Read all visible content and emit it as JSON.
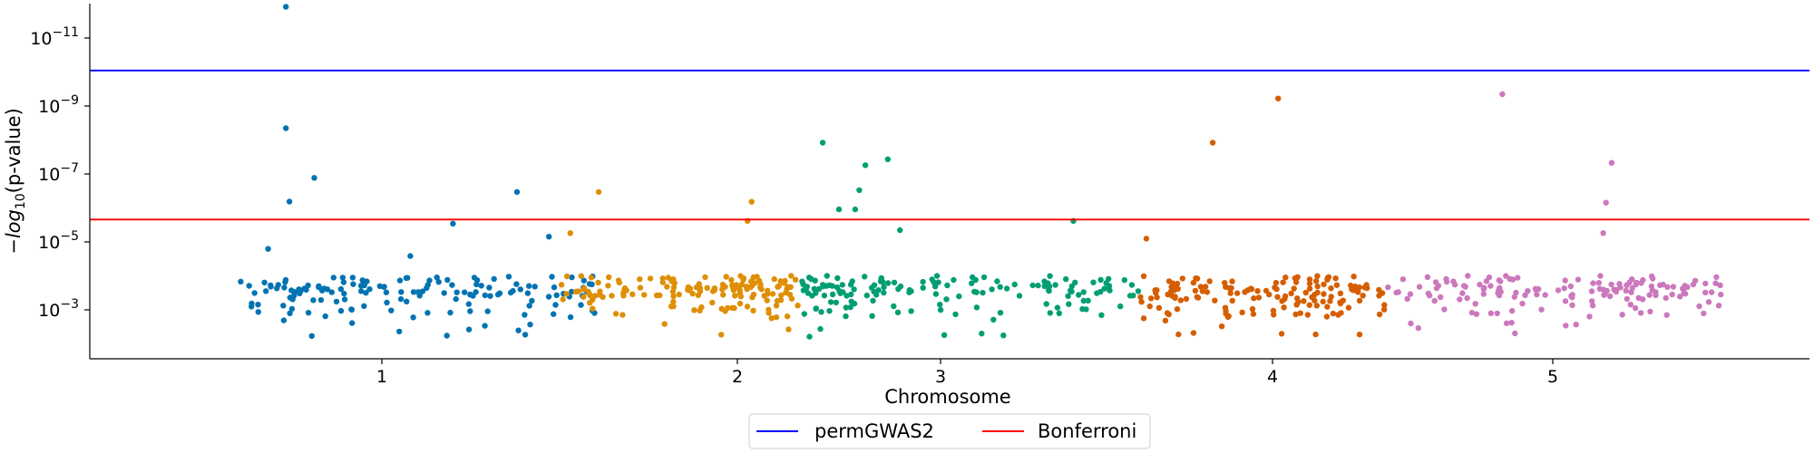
{
  "chart_data": {
    "type": "scatter",
    "title": "",
    "xlabel": "Chromosome",
    "ylabel": "−log10(p-value)",
    "y_scale": "log",
    "y_axis_inverted": true,
    "ylim": [
      4e-05,
      4e-12
    ],
    "x_ticks": [
      "1",
      "2",
      "3",
      "4",
      "5"
    ],
    "y_ticks": [
      {
        "value": 1e-11,
        "base": "10",
        "exp": "−11"
      },
      {
        "value": 1e-09,
        "base": "10",
        "exp": "−9"
      },
      {
        "value": 1e-07,
        "base": "10",
        "exp": "−7"
      },
      {
        "value": 1e-05,
        "base": "10",
        "exp": "−5"
      },
      {
        "value": 0.001,
        "base": "10",
        "exp": "−3"
      }
    ],
    "thresholds": [
      {
        "name": "permGWAS2",
        "value": 9e-11,
        "color": "#0000ff"
      },
      {
        "name": "Bonferroni",
        "value": 2.2e-06,
        "color": "#ff0000"
      }
    ],
    "legend": {
      "position": "bottom-center",
      "entries": [
        "permGWAS2",
        "Bonferroni"
      ]
    },
    "grid": false,
    "chromosomes": [
      {
        "chr": "1",
        "color": "#0173b2",
        "range": [
          0.6,
          1.6
        ],
        "tick": 1.0,
        "top_hits": [
          {
            "x": 0.73,
            "p": 1.2e-12
          },
          {
            "x": 0.73,
            "p": 4.5e-09
          },
          {
            "x": 0.74,
            "p": 6.5e-07
          },
          {
            "x": 0.81,
            "p": 1.3e-07
          },
          {
            "x": 1.2,
            "p": 2.9e-06
          },
          {
            "x": 1.38,
            "p": 3.4e-07
          },
          {
            "x": 1.47,
            "p": 7e-06
          },
          {
            "x": 0.68,
            "p": 1.6e-05
          },
          {
            "x": 1.08,
            "p": 2.6e-05
          }
        ]
      },
      {
        "chr": "2",
        "color": "#de8f05",
        "range": [
          1.5,
          2.3
        ],
        "tick": 2.0,
        "top_hits": [
          {
            "x": 2.07,
            "p": 6.6e-07
          },
          {
            "x": 1.61,
            "p": 3.4e-07
          },
          {
            "x": 2.05,
            "p": 2.4e-06
          },
          {
            "x": 1.53,
            "p": 5.5e-06
          }
        ]
      },
      {
        "chr": "3",
        "color": "#029e73",
        "range": [
          2.3,
          3.6
        ],
        "tick": 3.0,
        "top_hits": [
          {
            "x": 2.42,
            "p": 1.2e-08
          },
          {
            "x": 2.63,
            "p": 5.5e-08
          },
          {
            "x": 2.74,
            "p": 3.7e-08
          },
          {
            "x": 2.6,
            "p": 3e-07
          },
          {
            "x": 2.5,
            "p": 1.1e-06
          },
          {
            "x": 2.58,
            "p": 1.1e-06
          },
          {
            "x": 3.4,
            "p": 2.4e-06
          },
          {
            "x": 2.8,
            "p": 4.5e-06
          }
        ]
      },
      {
        "chr": "4",
        "color": "#d55e00",
        "range": [
          3.6,
          4.4
        ],
        "tick": 4.0,
        "top_hits": [
          {
            "x": 4.02,
            "p": 6e-10
          },
          {
            "x": 3.82,
            "p": 1.2e-08
          },
          {
            "x": 3.62,
            "p": 8e-06
          }
        ]
      },
      {
        "chr": "5",
        "color": "#cc78bc",
        "range": [
          4.4,
          5.6
        ],
        "tick": 5.0,
        "top_hits": [
          {
            "x": 4.82,
            "p": 4.5e-10
          },
          {
            "x": 5.21,
            "p": 4.7e-08
          },
          {
            "x": 5.19,
            "p": 7e-07
          },
          {
            "x": 5.18,
            "p": 5.5e-06
          }
        ]
      }
    ]
  }
}
